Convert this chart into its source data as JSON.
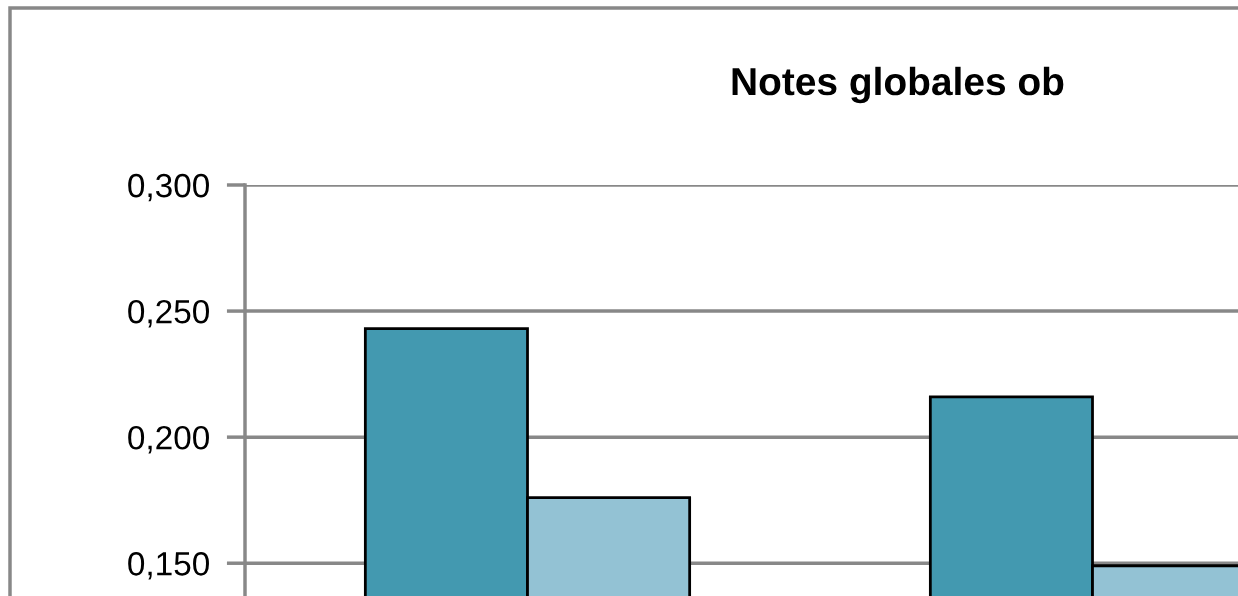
{
  "chart_data": {
    "type": "bar",
    "title": "Notes globales ob",
    "categories": [
      null,
      null
    ],
    "series": [
      {
        "color": "#4399b0",
        "values": [
          0.243,
          0.216
        ]
      },
      {
        "color": "#93c2d4",
        "values": [
          0.176,
          0.149
        ]
      }
    ],
    "ylim": [
      0.137,
      0.3
    ],
    "yticks": [
      {
        "value": 0.15,
        "label": "0,150"
      },
      {
        "value": 0.2,
        "label": "0,200"
      },
      {
        "value": 0.25,
        "label": "0,250"
      },
      {
        "value": 0.3,
        "label": "0,300"
      }
    ],
    "grid": "y"
  }
}
